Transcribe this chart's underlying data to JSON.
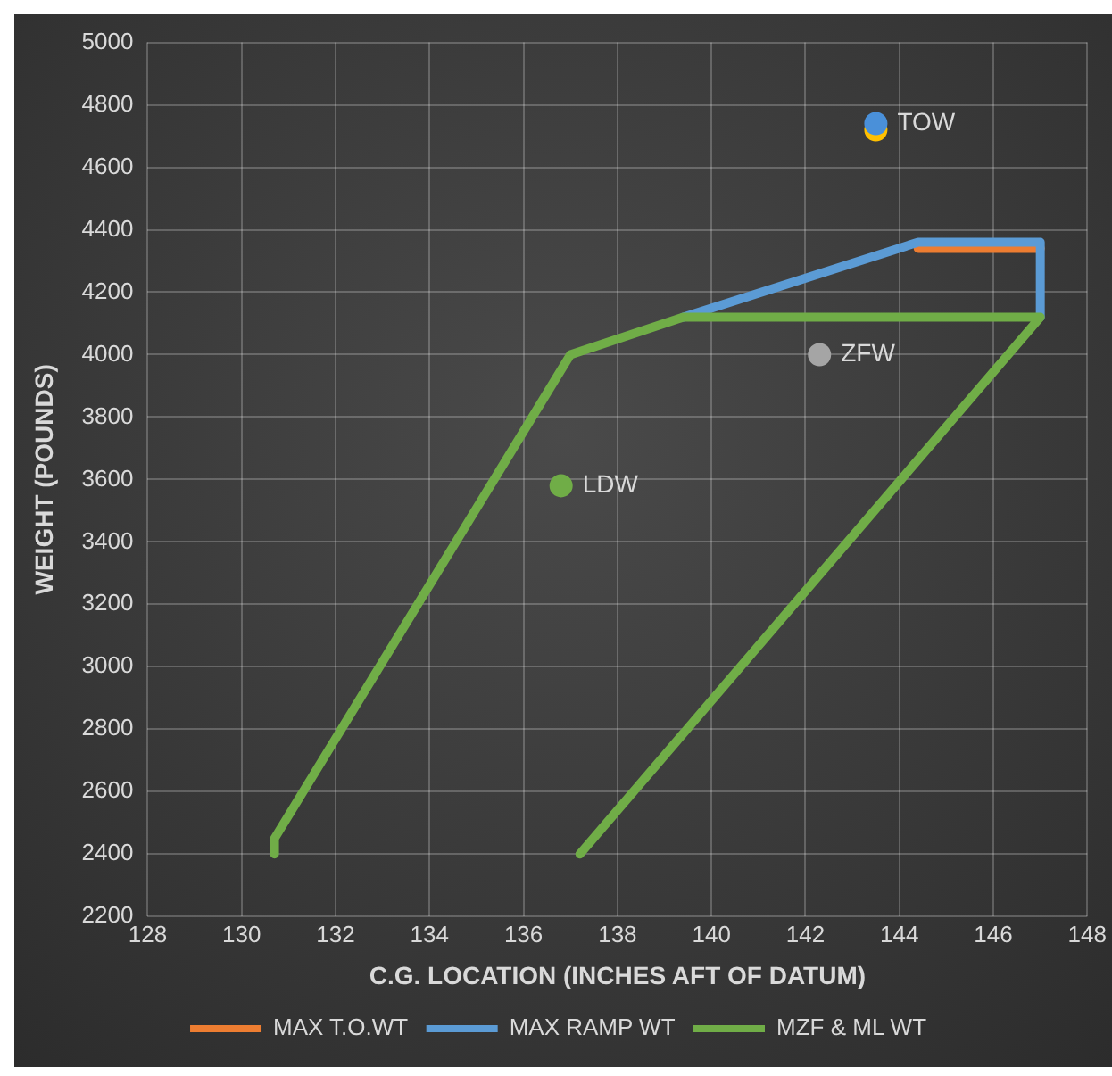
{
  "chart_data": {
    "type": "line",
    "xlabel": "C.G. LOCATION (INCHES AFT OF DATUM)",
    "ylabel": "WEIGHT (POUNDS)",
    "xlim": [
      128,
      148
    ],
    "xticks": [
      128,
      130,
      132,
      134,
      136,
      138,
      140,
      142,
      144,
      146,
      148
    ],
    "ylim": [
      2200,
      5000
    ],
    "yticks": [
      2200,
      2400,
      2600,
      2800,
      3000,
      3200,
      3400,
      3600,
      3800,
      4000,
      4200,
      4400,
      4600,
      4800,
      5000
    ],
    "grid": true,
    "legend": "bottom",
    "series": [
      {
        "type": "line",
        "marker": "none",
        "name": "MAX T.O.WT",
        "color": "#ed7d31",
        "x": [
          144.4,
          147.0
        ],
        "values": [
          4340,
          4340
        ]
      },
      {
        "type": "line",
        "marker": "none",
        "name": "MAX RAMP WT",
        "color": "#5b9bd5",
        "x": [
          139.4,
          144.4,
          147.0,
          147.0
        ],
        "values": [
          4120,
          4360,
          4360,
          4120
        ]
      },
      {
        "type": "line",
        "marker": "none",
        "name": "MZF & ML WT",
        "color": "#70ad47",
        "x": [
          130.7,
          130.7,
          137.0,
          139.4,
          147.0,
          137.2
        ],
        "values": [
          2400,
          2450,
          4000,
          4120,
          4120,
          2400
        ]
      },
      {
        "type": "scatter",
        "marker": "circle",
        "colors": [
          "#ffc000",
          "#4a90d9",
          "#a5a5a5",
          "#70ad47"
        ],
        "x": [
          143.5,
          143.5,
          142.3,
          136.8
        ],
        "values": [
          4720,
          4740,
          4000,
          3580
        ]
      }
    ],
    "annotations": [
      {
        "text": "TOW",
        "x": 143.5,
        "y": 4740
      },
      {
        "text": "ZFW",
        "x": 142.3,
        "y": 4000
      },
      {
        "text": "LDW",
        "x": 136.8,
        "y": 3580
      }
    ]
  }
}
